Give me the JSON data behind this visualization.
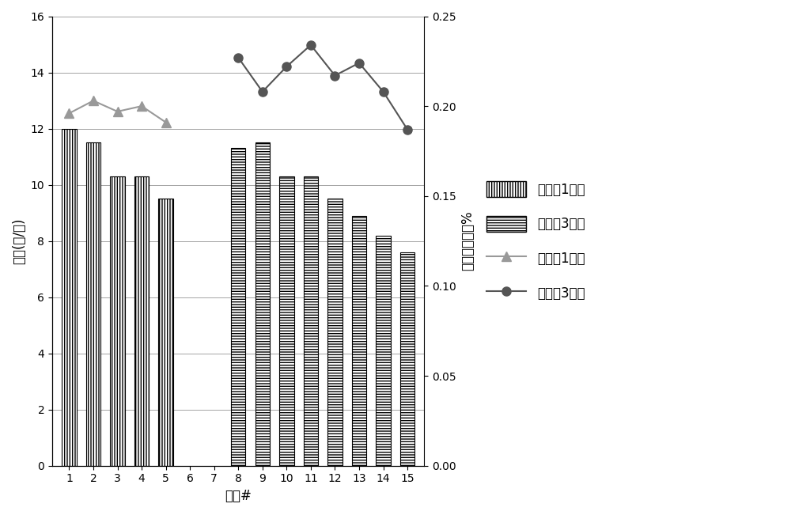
{
  "categories": [
    1,
    2,
    3,
    4,
    5,
    6,
    7,
    8,
    9,
    10,
    11,
    12,
    13,
    14,
    15
  ],
  "bar1_x": [
    1,
    2,
    3,
    4,
    5
  ],
  "bar1_vals": [
    12.0,
    11.5,
    10.3,
    10.3,
    9.5
  ],
  "bar2_x": [
    8,
    9,
    10,
    11,
    12,
    13,
    14,
    15
  ],
  "bar2_vals": [
    11.3,
    11.5,
    10.3,
    10.3,
    9.5,
    8.9,
    8.2,
    7.6
  ],
  "line1_x": [
    1,
    2,
    3,
    4,
    5
  ],
  "line1_y": [
    0.196,
    0.203,
    0.197,
    0.2,
    0.191
  ],
  "line2_x": [
    8,
    9,
    10,
    11,
    12,
    13,
    14,
    15
  ],
  "line2_y": [
    0.227,
    0.208,
    0.222,
    0.234,
    0.217,
    0.224,
    0.208,
    0.187
  ],
  "xlabel": "样品#",
  "ylabel_left": "剂量(磅/吨)",
  "ylabel_right": "滤清液含固率%",
  "ylim_left": [
    0,
    16
  ],
  "ylim_right": [
    0,
    0.25
  ],
  "yticks_left": [
    0,
    2,
    4,
    6,
    8,
    10,
    12,
    14,
    16
  ],
  "yticks_right": [
    0,
    0.05,
    0.1,
    0.15,
    0.2,
    0.25
  ],
  "xtick_positions": [
    0,
    1,
    2,
    3,
    4,
    5,
    6,
    7,
    8,
    9,
    10,
    11,
    12,
    13,
    14
  ],
  "xtick_labels": [
    "1",
    "2",
    "3",
    "4",
    "5",
    "6",
    "7",
    "8",
    "9",
    "10",
    "11",
    "12",
    "13",
    "14",
    "15"
  ],
  "legend_labels": [
    "对比样1用量",
    "实施例3用量",
    "对比样1滤饵",
    "实施例3滤饵"
  ],
  "line1_color": "#999999",
  "line2_color": "#555555",
  "background_color": "#ffffff",
  "bar_width": 0.6
}
